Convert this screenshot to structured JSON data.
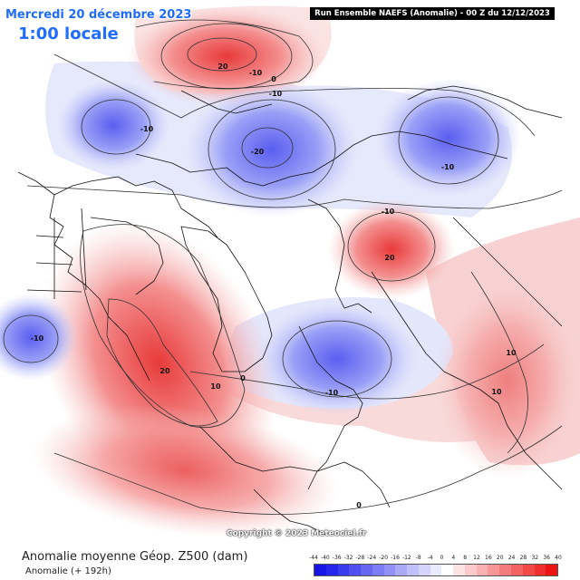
{
  "header": {
    "date": "Mercredi 20 décembre 2023",
    "time": "1:00 locale",
    "run_info": "Run Ensemble NAEFS  (Anomalie)  -  00 Z du 12/12/2023"
  },
  "footer": {
    "title": "Anomalie moyenne Géop. Z500 (dam)",
    "subtitle": "Anomalie (+ 192h)",
    "copyright": "Copyright © 2023 Meteociel.fr"
  },
  "contour_labels": [
    "20",
    "-10",
    "0",
    "-10",
    "-10",
    "-20",
    "-10",
    "-10",
    "20",
    "-10",
    "-10",
    "20",
    "10",
    "0",
    "10",
    "10",
    "0"
  ],
  "colors": {
    "neg_strong": "#5a5ef0",
    "neg_weak": "#c9cffa",
    "pos_weak": "#f6c4c4",
    "pos_strong": "#e83a3a",
    "header_text": "#1f6cff"
  },
  "scale": {
    "ticks": [
      "-44",
      "-40",
      "-36",
      "-32",
      "-28",
      "-24",
      "-20",
      "-16",
      "-12",
      "-8",
      "-4",
      "0",
      "4",
      "8",
      "12",
      "16",
      "20",
      "24",
      "28",
      "32",
      "36",
      "40"
    ],
    "colors": [
      "#1515e6",
      "#2626ea",
      "#3b3bee",
      "#5050f0",
      "#6666f2",
      "#7c7cf4",
      "#9292f6",
      "#a9a9f8",
      "#bfbffa",
      "#d5d5fc",
      "#ebebfe",
      "#ffffff",
      "#fde4e4",
      "#fbcaca",
      "#f9b0b0",
      "#f79696",
      "#f57c7c",
      "#f36262",
      "#f14848",
      "#ef2e2e",
      "#ed1414"
    ]
  }
}
